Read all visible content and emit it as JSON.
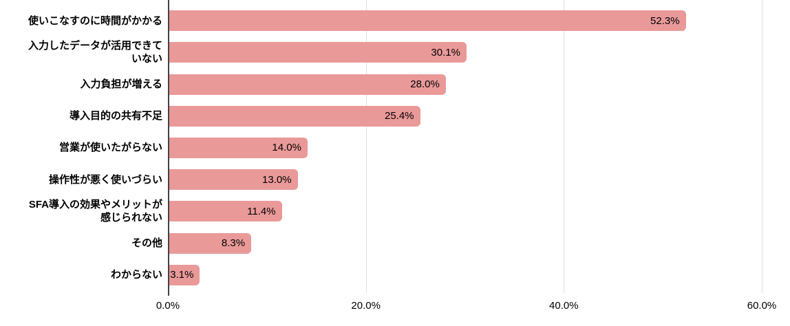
{
  "chart_data": {
    "type": "bar",
    "orientation": "horizontal",
    "title": "",
    "xlabel": "",
    "ylabel": "",
    "categories": [
      "使いこなすのに時間がかかる",
      "入力したデータが活用できていない",
      "入力負担が増える",
      "導入目的の共有不足",
      "営業が使いたがらない",
      "操作性が悪く使いづらい",
      "SFA導入の効果やメリットが感じられない",
      "その他",
      "わからない"
    ],
    "categories_display": [
      "使いこなすのに時間がかかる",
      "入力したデータが活用できて\nいない",
      "入力負担が増える",
      "導入目的の共有不足",
      "営業が使いたがらない",
      "操作性が悪く使いづらい",
      "SFA導入の効果やメリットが\n感じられない",
      "その他",
      "わからない"
    ],
    "values": [
      52.3,
      30.1,
      28.0,
      25.4,
      14.0,
      13.0,
      11.4,
      8.3,
      3.1
    ],
    "value_labels": [
      "52.3%",
      "30.1%",
      "28.0%",
      "25.4%",
      "14.0%",
      "13.0%",
      "11.4%",
      "8.3%",
      "3.1%"
    ],
    "xlim": [
      0,
      62.85
    ],
    "x_ticks": [
      {
        "value": 0,
        "label": "0.0%"
      },
      {
        "value": 20,
        "label": "20.0%"
      },
      {
        "value": 40,
        "label": "40.0%"
      },
      {
        "value": 60,
        "label": "60.0%"
      }
    ],
    "grid": "vertical",
    "legend": "none",
    "colors": {
      "bar": "#ea9999",
      "axis": "#424242",
      "gridline": "#dedede",
      "category_text": "#000000",
      "value_text": "#000000",
      "background": "#ffffff"
    }
  }
}
